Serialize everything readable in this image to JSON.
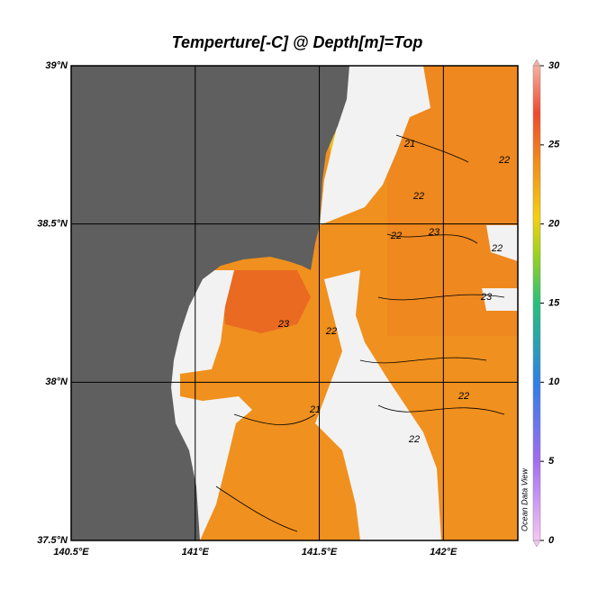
{
  "chart_data": {
    "type": "map",
    "title": "Temperture[-C] @ Depth[m]=Top",
    "xlim": [
      140.5,
      142.3
    ],
    "xticks": [
      {
        "value": 140.5,
        "label": "140.5°E"
      },
      {
        "value": 141,
        "label": "141°E"
      },
      {
        "value": 141.5,
        "label": "141.5°E"
      },
      {
        "value": 142,
        "label": "142°E"
      }
    ],
    "ylim": [
      37.5,
      39
    ],
    "yticks": [
      {
        "value": 37.5,
        "label": "37.5°N"
      },
      {
        "value": 38,
        "label": "38°N"
      },
      {
        "value": 38.5,
        "label": "38.5°N"
      },
      {
        "value": 39,
        "label": "39°N"
      }
    ],
    "grid": true,
    "colorbar": {
      "lim": [
        0,
        30
      ],
      "ticks": [
        0,
        5,
        10,
        15,
        20,
        25,
        30
      ]
    },
    "contour_labels": [
      21,
      22,
      22,
      23,
      23,
      22,
      21,
      22,
      22,
      23,
      22,
      22
    ],
    "watermark": "Ocean Data View"
  }
}
